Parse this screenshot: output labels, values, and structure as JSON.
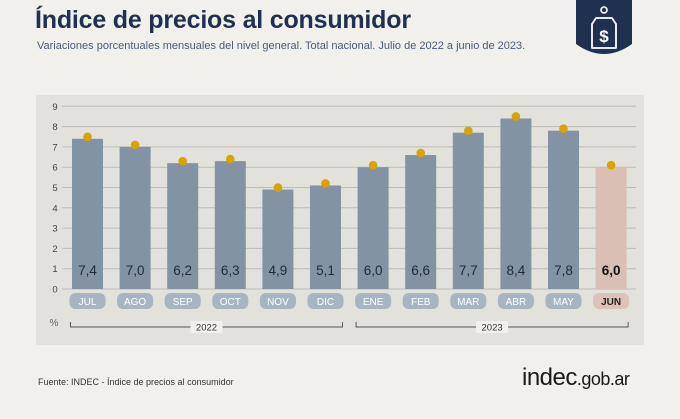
{
  "header": {
    "title": "Índice de precios al consumidor",
    "subtitle": "Variaciones porcentuales mensuales del nivel general. Total nacional. Julio de 2022 a junio de 2023."
  },
  "footer": {
    "source": "Fuente: INDEC - Índice de precios al consumidor",
    "brand_main": "indec",
    "brand_tld": ".gob.ar"
  },
  "badge": {
    "icon": "price-tag-dollar-icon",
    "symbol": "$"
  },
  "colors": {
    "bar": "#8393a4",
    "bar_highlight": "#d9bfb4",
    "dot": "#d9a300",
    "label_pill": "#a9b4c1",
    "label_pill_highlight": "#dcc3b9",
    "navy": "#1f3051"
  },
  "chart_data": {
    "type": "bar",
    "categories": [
      "JUL",
      "AGO",
      "SEP",
      "OCT",
      "NOV",
      "DIC",
      "ENE",
      "FEB",
      "MAR",
      "ABR",
      "MAY",
      "JUN"
    ],
    "values": [
      7.4,
      7.0,
      6.2,
      6.3,
      4.9,
      5.1,
      6.0,
      6.6,
      7.7,
      8.4,
      7.8,
      6.0
    ],
    "value_labels": [
      "7,4",
      "7,0",
      "6,2",
      "6,3",
      "4,9",
      "5,1",
      "6,0",
      "6,6",
      "7,7",
      "8,4",
      "7,8",
      "6,0"
    ],
    "yticks": [
      "0",
      "1",
      "2",
      "3",
      "4",
      "5",
      "6",
      "7",
      "8",
      "9"
    ],
    "ylim": [
      0,
      9
    ],
    "ylabel": "%",
    "grid": true,
    "highlight_index": 11,
    "year_groups": [
      {
        "label": "2022",
        "from": 0,
        "to": 5
      },
      {
        "label": "2023",
        "from": 6,
        "to": 11
      }
    ]
  }
}
